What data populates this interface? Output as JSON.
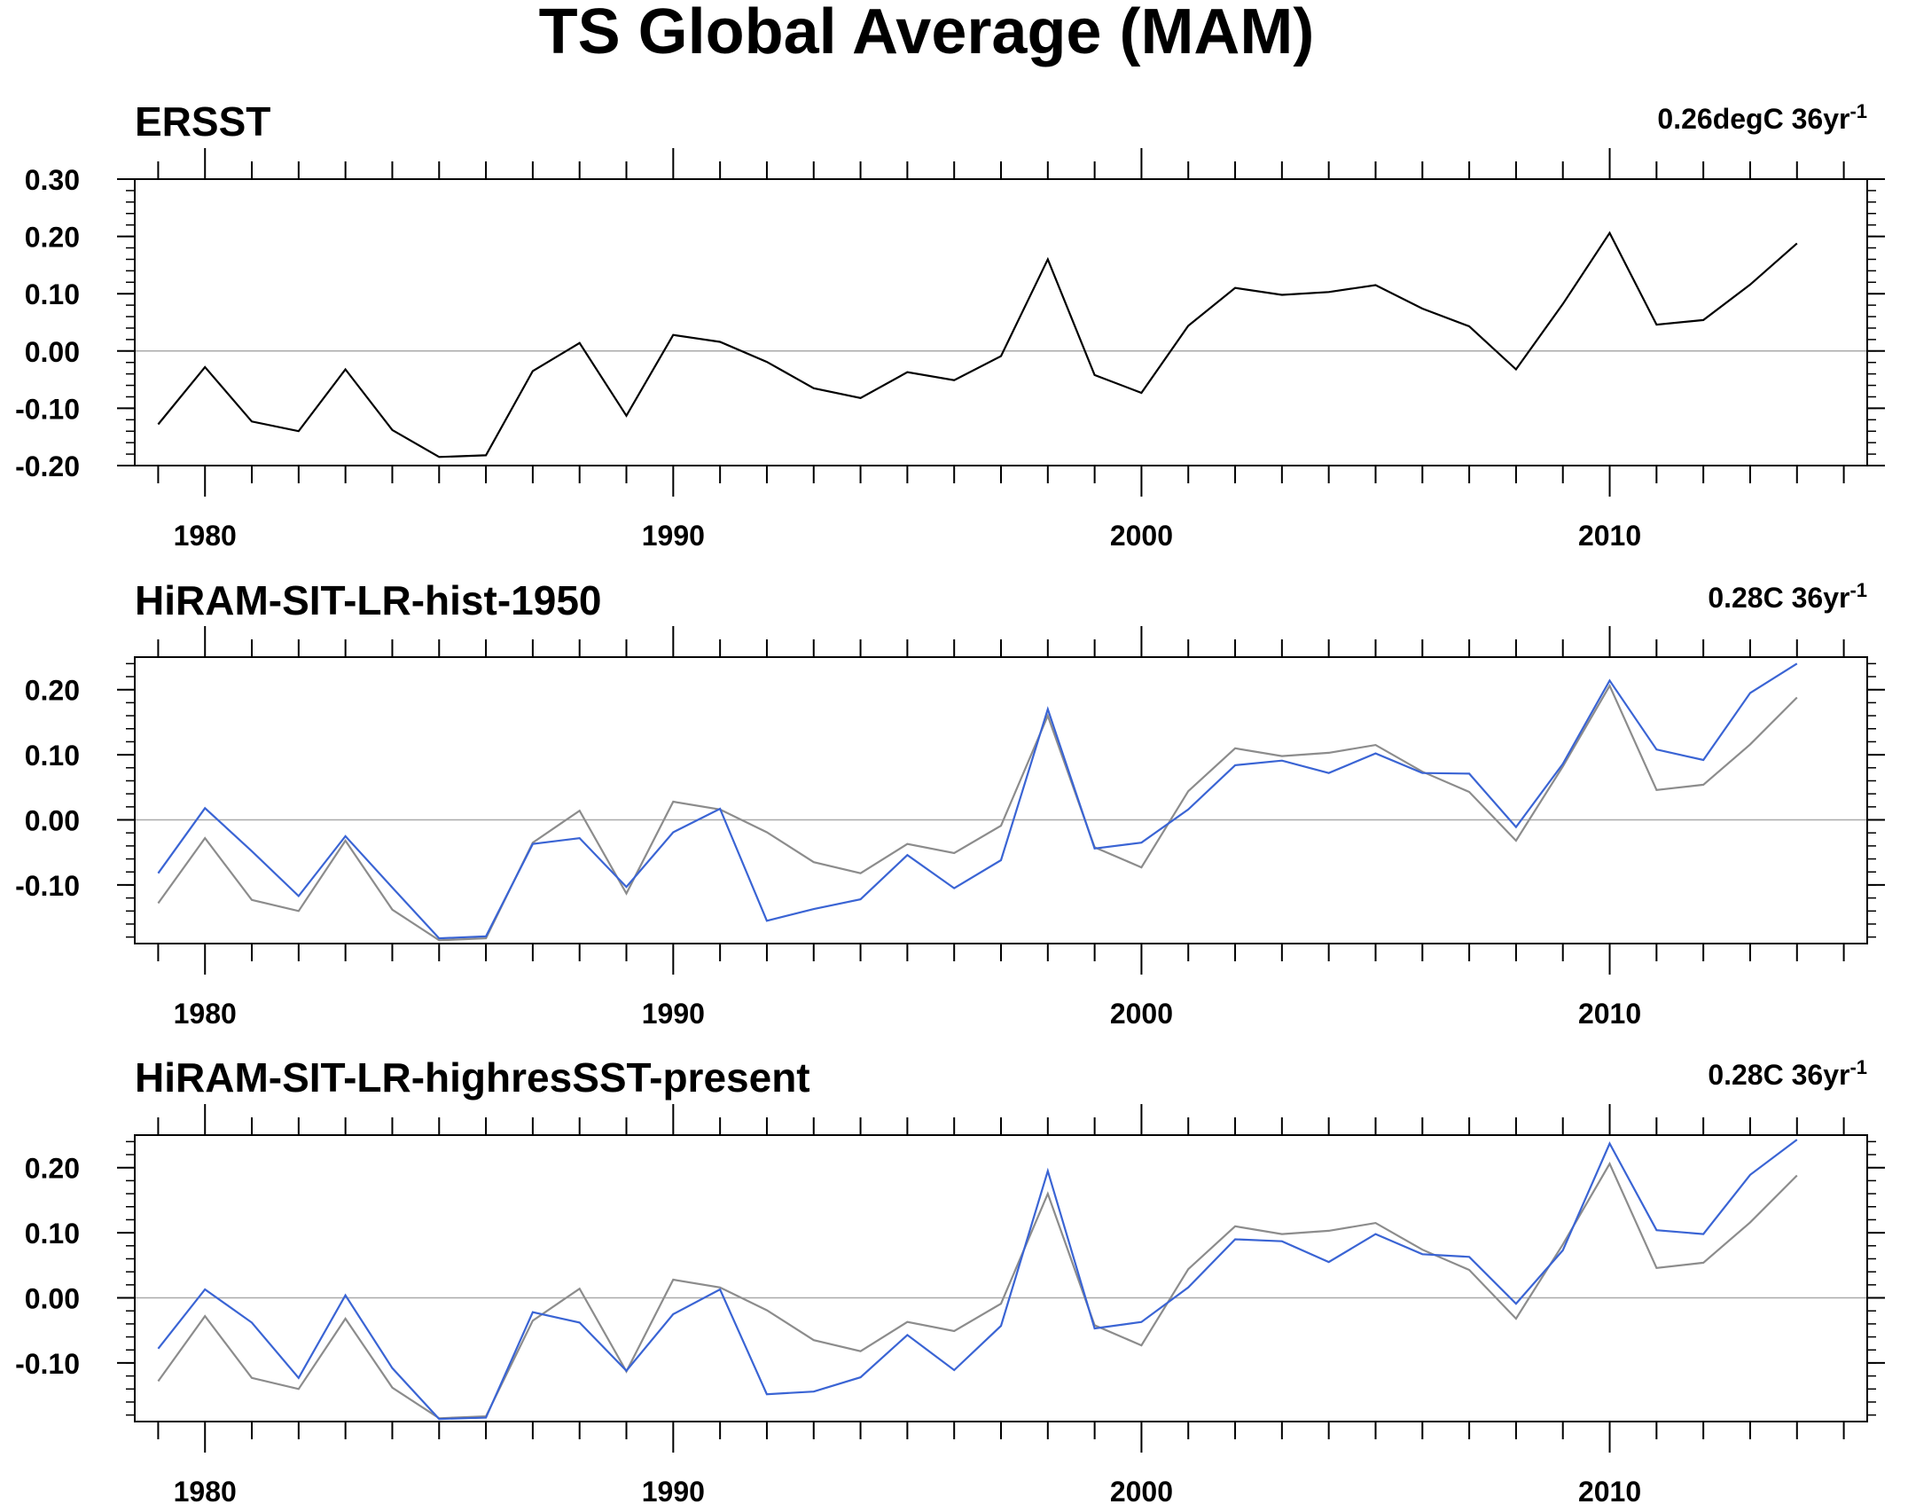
{
  "figure_title": "TS Global Average (MAM)",
  "colors": {
    "reference": "#000000",
    "reference_overlay": "#8c8c8c",
    "model": "#3a64d4",
    "zero_line": "#aaaaaa"
  },
  "chart_data": [
    {
      "type": "line",
      "title": "ERSST",
      "trend_text": "0.26degC 36yr",
      "trend_sup": "-1",
      "xlabel": "",
      "ylabel": "",
      "xlim": [
        1978.5,
        2015.5
      ],
      "ylim": [
        -0.2,
        0.3
      ],
      "x_ticks": [
        1980,
        1990,
        2000,
        2010
      ],
      "y_ticks": [
        -0.2,
        -0.1,
        0.0,
        0.1,
        0.2,
        0.3
      ],
      "y_tick_labels": [
        "-0.20",
        "-0.10",
        "0.00",
        "0.10",
        "0.20",
        "0.30"
      ],
      "x": [
        1979,
        1980,
        1981,
        1982,
        1983,
        1984,
        1985,
        1986,
        1987,
        1988,
        1989,
        1990,
        1991,
        1992,
        1993,
        1994,
        1995,
        1996,
        1997,
        1998,
        1999,
        2000,
        2001,
        2002,
        2003,
        2004,
        2005,
        2006,
        2007,
        2008,
        2009,
        2010,
        2011,
        2012,
        2013,
        2014
      ],
      "series": [
        {
          "role": "reference",
          "values": [
            -0.128,
            -0.028,
            -0.123,
            -0.14,
            -0.032,
            -0.138,
            -0.185,
            -0.182,
            -0.035,
            0.014,
            -0.113,
            0.028,
            0.016,
            -0.019,
            -0.065,
            -0.082,
            -0.037,
            -0.051,
            -0.009,
            0.16,
            -0.042,
            -0.073,
            0.044,
            0.11,
            0.098,
            0.103,
            0.115,
            0.074,
            0.043,
            -0.032,
            0.082,
            0.206,
            0.046,
            0.054,
            0.116,
            0.188
          ]
        }
      ]
    },
    {
      "type": "line",
      "title": "HiRAM-SIT-LR-hist-1950",
      "trend_text": "0.28C 36yr",
      "trend_sup": "-1",
      "xlabel": "",
      "ylabel": "",
      "xlim": [
        1978.5,
        2015.5
      ],
      "ylim": [
        -0.19,
        0.25
      ],
      "x_ticks": [
        1980,
        1990,
        2000,
        2010
      ],
      "y_ticks": [
        -0.1,
        0.0,
        0.1,
        0.2
      ],
      "y_tick_labels": [
        "-0.10",
        "0.00",
        "0.10",
        "0.20"
      ],
      "x": [
        1979,
        1980,
        1981,
        1982,
        1983,
        1984,
        1985,
        1986,
        1987,
        1988,
        1989,
        1990,
        1991,
        1992,
        1993,
        1994,
        1995,
        1996,
        1997,
        1998,
        1999,
        2000,
        2001,
        2002,
        2003,
        2004,
        2005,
        2006,
        2007,
        2008,
        2009,
        2010,
        2011,
        2012,
        2013,
        2014
      ],
      "series": [
        {
          "role": "reference",
          "values": [
            -0.128,
            -0.028,
            -0.123,
            -0.14,
            -0.032,
            -0.138,
            -0.185,
            -0.182,
            -0.035,
            0.014,
            -0.113,
            0.028,
            0.016,
            -0.019,
            -0.065,
            -0.082,
            -0.037,
            -0.051,
            -0.009,
            0.16,
            -0.042,
            -0.073,
            0.044,
            0.11,
            0.098,
            0.103,
            0.115,
            0.074,
            0.043,
            -0.032,
            0.082,
            0.206,
            0.046,
            0.054,
            0.116,
            0.188
          ]
        },
        {
          "role": "model",
          "values": [
            -0.082,
            0.018,
            -0.048,
            -0.117,
            -0.025,
            -0.104,
            -0.182,
            -0.179,
            -0.037,
            -0.028,
            -0.103,
            -0.019,
            0.017,
            -0.155,
            -0.137,
            -0.122,
            -0.054,
            -0.105,
            -0.062,
            0.17,
            -0.044,
            -0.035,
            0.016,
            0.084,
            0.091,
            0.072,
            0.102,
            0.072,
            0.071,
            -0.011,
            0.086,
            0.214,
            0.108,
            0.092,
            0.195,
            0.24
          ]
        }
      ]
    },
    {
      "type": "line",
      "title": "HiRAM-SIT-LR-highresSST-present",
      "trend_text": "0.28C 36yr",
      "trend_sup": "-1",
      "xlabel": "",
      "ylabel": "",
      "xlim": [
        1978.5,
        2015.5
      ],
      "ylim": [
        -0.19,
        0.25
      ],
      "x_ticks": [
        1980,
        1990,
        2000,
        2010
      ],
      "y_ticks": [
        -0.1,
        0.0,
        0.1,
        0.2
      ],
      "y_tick_labels": [
        "-0.10",
        "0.00",
        "0.10",
        "0.20"
      ],
      "x": [
        1979,
        1980,
        1981,
        1982,
        1983,
        1984,
        1985,
        1986,
        1987,
        1988,
        1989,
        1990,
        1991,
        1992,
        1993,
        1994,
        1995,
        1996,
        1997,
        1998,
        1999,
        2000,
        2001,
        2002,
        2003,
        2004,
        2005,
        2006,
        2007,
        2008,
        2009,
        2010,
        2011,
        2012,
        2013,
        2014
      ],
      "series": [
        {
          "role": "reference",
          "values": [
            -0.128,
            -0.028,
            -0.123,
            -0.14,
            -0.032,
            -0.138,
            -0.185,
            -0.182,
            -0.035,
            0.014,
            -0.113,
            0.028,
            0.016,
            -0.019,
            -0.065,
            -0.082,
            -0.037,
            -0.051,
            -0.009,
            0.16,
            -0.042,
            -0.073,
            0.044,
            0.11,
            0.098,
            0.103,
            0.115,
            0.074,
            0.043,
            -0.032,
            0.082,
            0.206,
            0.046,
            0.054,
            0.116,
            0.188
          ]
        },
        {
          "role": "model",
          "values": [
            -0.078,
            0.013,
            -0.038,
            -0.123,
            0.004,
            -0.108,
            -0.186,
            -0.184,
            -0.022,
            -0.038,
            -0.112,
            -0.025,
            0.013,
            -0.148,
            -0.144,
            -0.122,
            -0.057,
            -0.111,
            -0.043,
            0.195,
            -0.047,
            -0.037,
            0.016,
            0.09,
            0.087,
            0.055,
            0.098,
            0.067,
            0.063,
            -0.009,
            0.073,
            0.237,
            0.104,
            0.098,
            0.189,
            0.243
          ]
        }
      ]
    }
  ]
}
